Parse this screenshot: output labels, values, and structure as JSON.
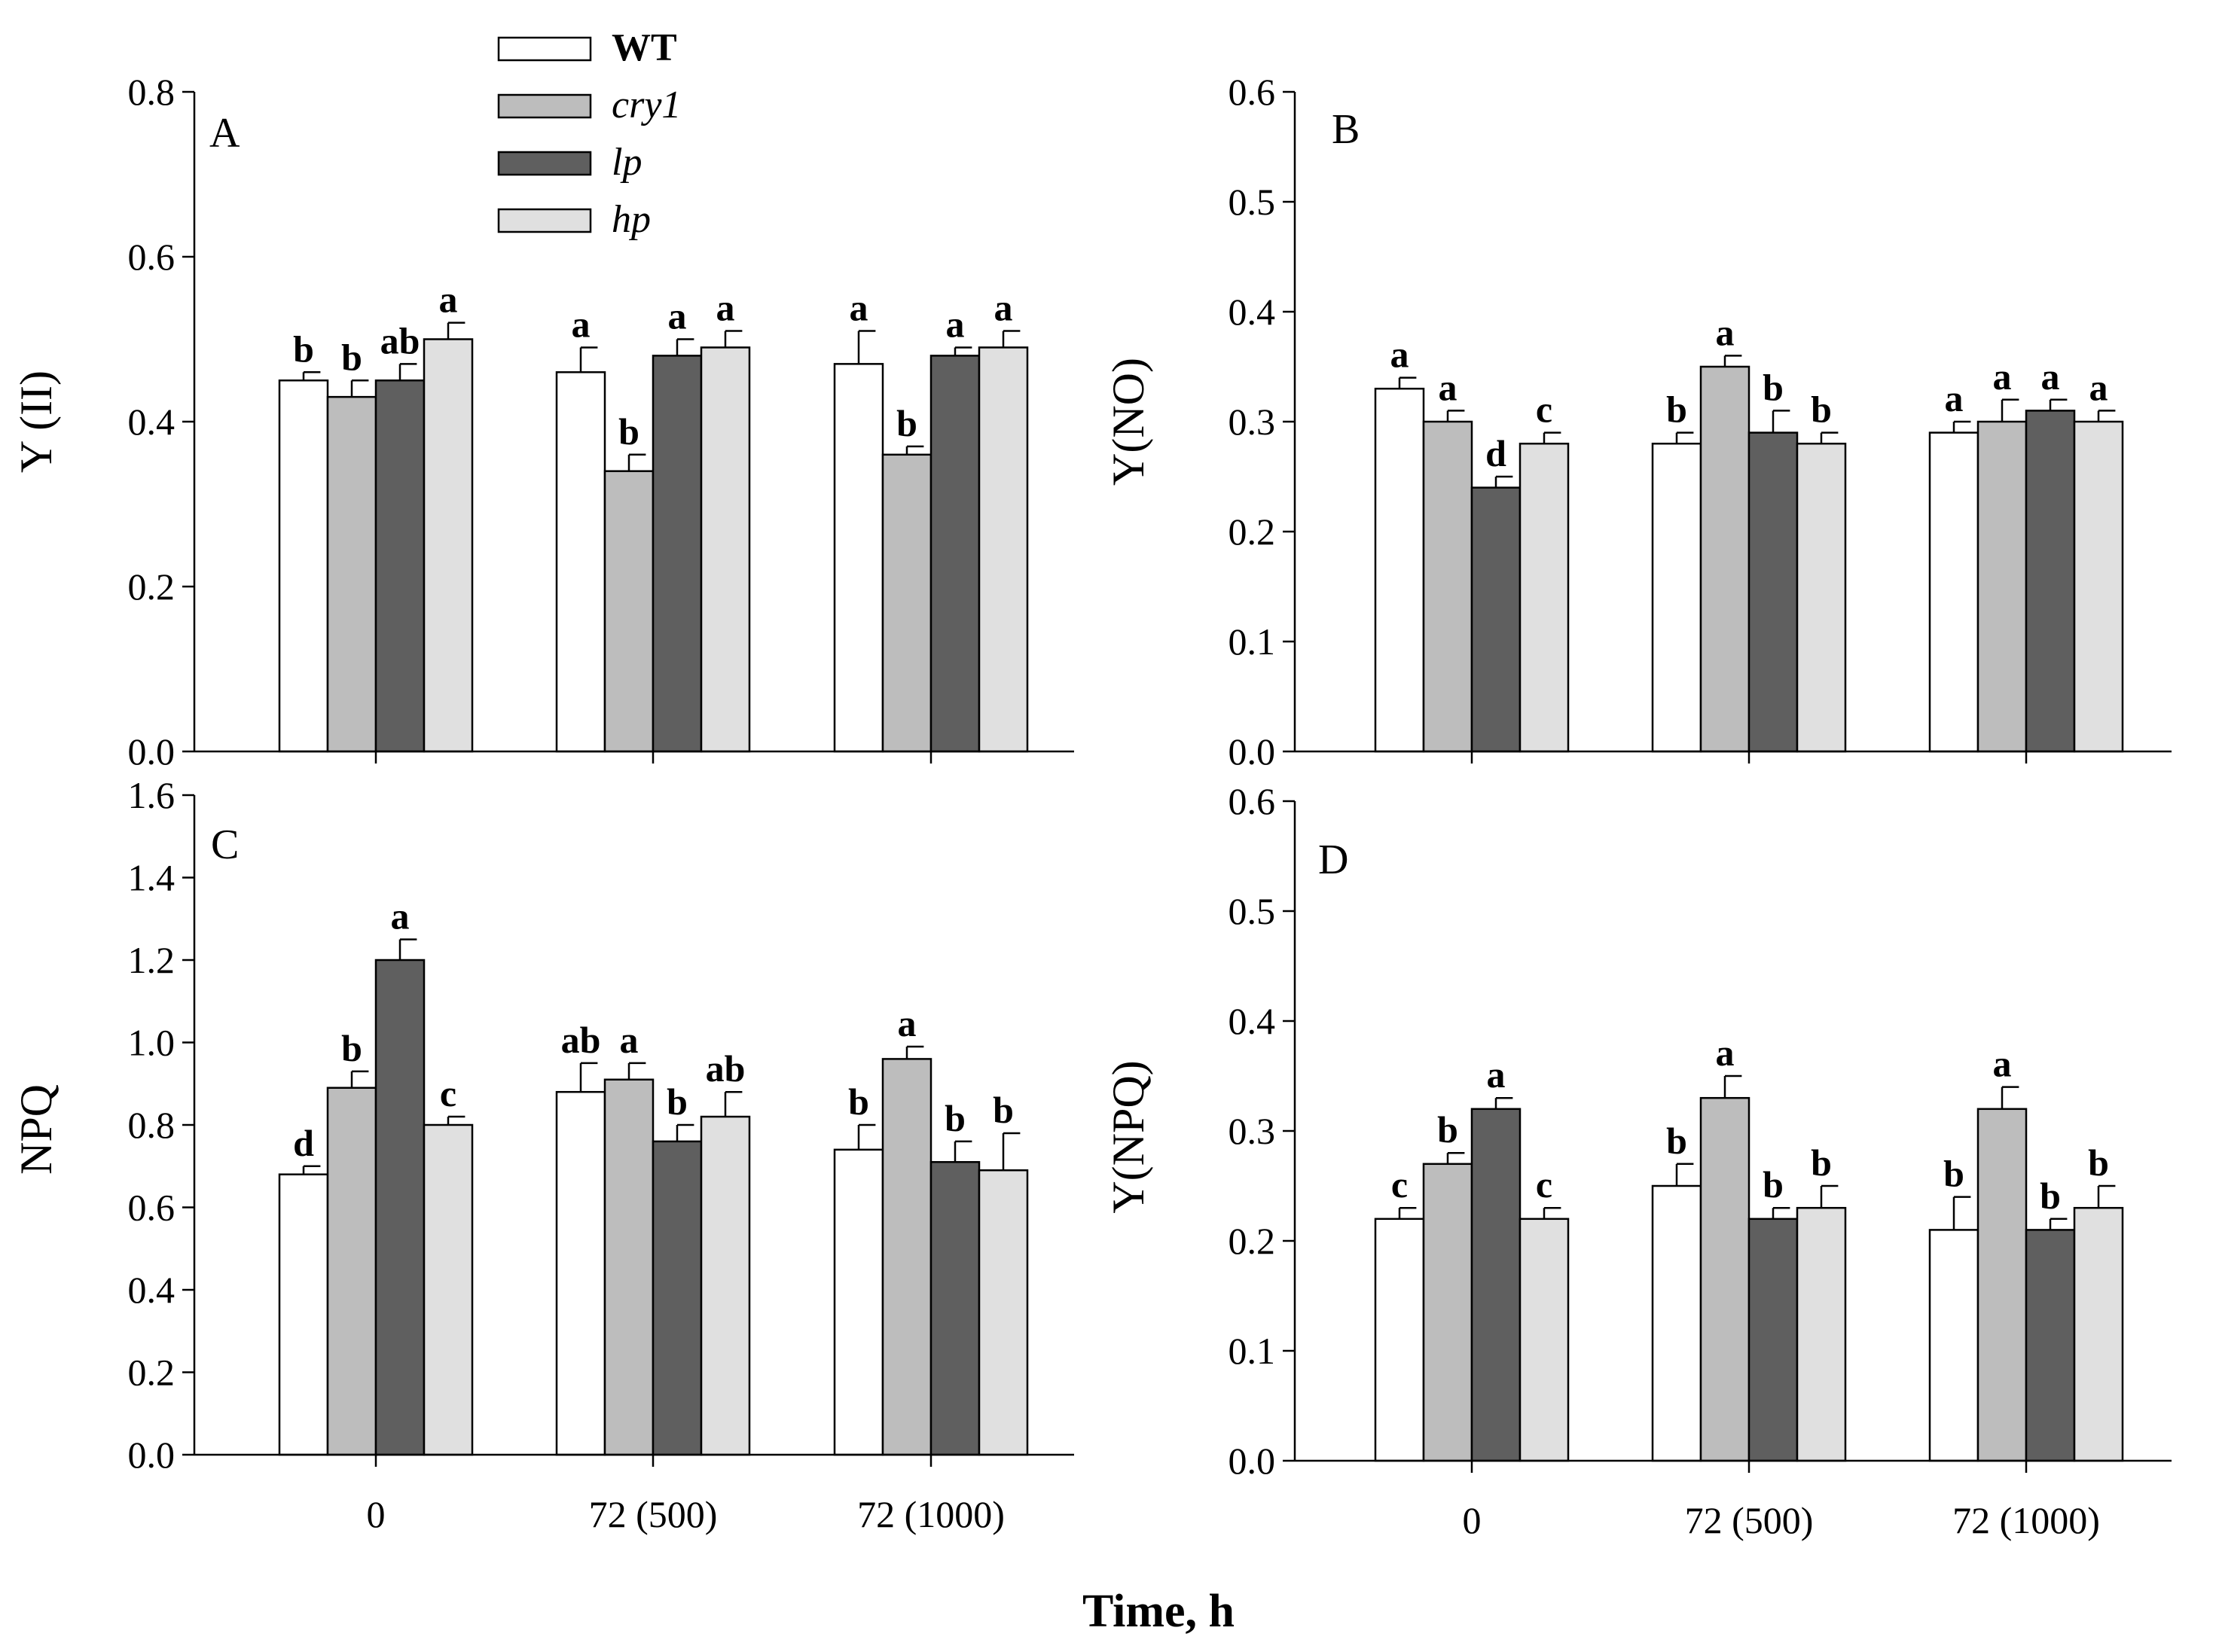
{
  "figure": {
    "xlabel": "Time, h"
  },
  "legend": {
    "items": [
      {
        "label": "WT",
        "color": "#ffffff",
        "italic": false
      },
      {
        "label": "cry1",
        "color": "#bdbdbd",
        "italic": true
      },
      {
        "label": "lp",
        "color": "#5f5f5f",
        "italic": true
      },
      {
        "label": "hp",
        "color": "#e0e0e0",
        "italic": true
      }
    ]
  },
  "chart_data": [
    {
      "panel": "A",
      "type": "bar",
      "ylabel": "Y (II)",
      "ylim": [
        0,
        0.8
      ],
      "yticks": [
        "0.0",
        "0.2",
        "0.4",
        "0.6",
        "0.8"
      ],
      "categories": [
        "0",
        "72 (500)",
        "72 (1000)"
      ],
      "show_xticklabels": false,
      "series": [
        {
          "name": "WT",
          "values": [
            0.45,
            0.46,
            0.47
          ],
          "errors": [
            0.01,
            0.03,
            0.04
          ],
          "letters": [
            "b",
            "a",
            "a"
          ]
        },
        {
          "name": "cry1",
          "values": [
            0.43,
            0.34,
            0.36
          ],
          "errors": [
            0.02,
            0.02,
            0.01
          ],
          "letters": [
            "b",
            "b",
            "b"
          ]
        },
        {
          "name": "lp",
          "values": [
            0.45,
            0.48,
            0.48
          ],
          "errors": [
            0.02,
            0.02,
            0.01
          ],
          "letters": [
            "ab",
            "a",
            "a"
          ]
        },
        {
          "name": "hp",
          "values": [
            0.5,
            0.49,
            0.49
          ],
          "errors": [
            0.02,
            0.02,
            0.02
          ],
          "letters": [
            "a",
            "a",
            "a"
          ]
        }
      ]
    },
    {
      "panel": "B",
      "type": "bar",
      "ylabel": "Y(NO)",
      "ylim": [
        0,
        0.6
      ],
      "yticks": [
        "0.0",
        "0.1",
        "0.2",
        "0.3",
        "0.4",
        "0.5",
        "0.6"
      ],
      "categories": [
        "0",
        "72 (500)",
        "72 (1000)"
      ],
      "show_xticklabels": false,
      "series": [
        {
          "name": "WT",
          "values": [
            0.33,
            0.28,
            0.29
          ],
          "errors": [
            0.01,
            0.01,
            0.01
          ],
          "letters": [
            "a",
            "b",
            "a"
          ]
        },
        {
          "name": "cry1",
          "values": [
            0.3,
            0.35,
            0.3
          ],
          "errors": [
            0.01,
            0.01,
            0.02
          ],
          "letters": [
            "a",
            "a",
            "a"
          ]
        },
        {
          "name": "lp",
          "values": [
            0.24,
            0.29,
            0.31
          ],
          "errors": [
            0.01,
            0.02,
            0.01
          ],
          "letters": [
            "d",
            "b",
            "a"
          ]
        },
        {
          "name": "hp",
          "values": [
            0.28,
            0.28,
            0.3
          ],
          "errors": [
            0.01,
            0.01,
            0.01
          ],
          "letters": [
            "c",
            "b",
            "a"
          ]
        }
      ]
    },
    {
      "panel": "C",
      "type": "bar",
      "ylabel": "NPQ",
      "ylim": [
        0,
        1.6
      ],
      "yticks": [
        "0.0",
        "0.2",
        "0.4",
        "0.6",
        "0.8",
        "1.0",
        "1.2",
        "1.4",
        "1.6"
      ],
      "categories": [
        "0",
        "72 (500)",
        "72 (1000)"
      ],
      "show_xticklabels": true,
      "series": [
        {
          "name": "WT",
          "values": [
            0.68,
            0.88,
            0.74
          ],
          "errors": [
            0.02,
            0.07,
            0.06
          ],
          "letters": [
            "d",
            "ab",
            "b"
          ]
        },
        {
          "name": "cry1",
          "values": [
            0.89,
            0.91,
            0.96
          ],
          "errors": [
            0.04,
            0.04,
            0.03
          ],
          "letters": [
            "b",
            "a",
            "a"
          ]
        },
        {
          "name": "lp",
          "values": [
            1.2,
            0.76,
            0.71
          ],
          "errors": [
            0.05,
            0.04,
            0.05
          ],
          "letters": [
            "a",
            "b",
            "b"
          ]
        },
        {
          "name": "hp",
          "values": [
            0.8,
            0.82,
            0.69
          ],
          "errors": [
            0.02,
            0.06,
            0.09
          ],
          "letters": [
            "c",
            "ab",
            "b"
          ]
        }
      ]
    },
    {
      "panel": "D",
      "type": "bar",
      "ylabel": "Y(NPQ)",
      "ylim": [
        0,
        0.6
      ],
      "yticks": [
        "0.0",
        "0.1",
        "0.2",
        "0.3",
        "0.4",
        "0.5",
        "0.6"
      ],
      "categories": [
        "0",
        "72 (500)",
        "72 (1000)"
      ],
      "show_xticklabels": true,
      "series": [
        {
          "name": "WT",
          "values": [
            0.22,
            0.25,
            0.21
          ],
          "errors": [
            0.01,
            0.02,
            0.03
          ],
          "letters": [
            "c",
            "b",
            "b"
          ]
        },
        {
          "name": "cry1",
          "values": [
            0.27,
            0.33,
            0.32
          ],
          "errors": [
            0.01,
            0.02,
            0.02
          ],
          "letters": [
            "b",
            "a",
            "a"
          ]
        },
        {
          "name": "lp",
          "values": [
            0.32,
            0.22,
            0.21
          ],
          "errors": [
            0.01,
            0.01,
            0.01
          ],
          "letters": [
            "a",
            "b",
            "b"
          ]
        },
        {
          "name": "hp",
          "values": [
            0.22,
            0.23,
            0.23
          ],
          "errors": [
            0.01,
            0.02,
            0.02
          ],
          "letters": [
            "c",
            "b",
            "b"
          ]
        }
      ]
    }
  ]
}
